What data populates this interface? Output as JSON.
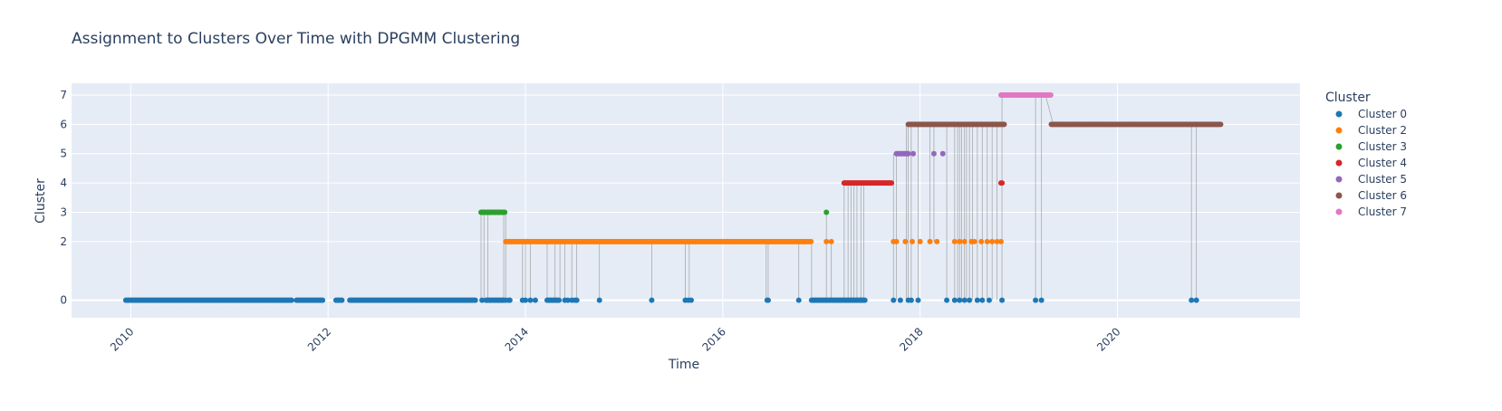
{
  "chart_data": {
    "type": "scatter",
    "title": "Assignment to Clusters Over Time with DPGMM Clustering",
    "xlabel": "Time",
    "ylabel": "Cluster",
    "xlim": [
      2009.4,
      2021.85
    ],
    "ylim": [
      -0.6,
      7.4
    ],
    "x_ticks": [
      2010,
      2012,
      2014,
      2016,
      2018,
      2020
    ],
    "x_tick_labels": [
      "2010",
      "2012",
      "2014",
      "2016",
      "2018",
      "2020"
    ],
    "y_ticks": [
      0,
      2,
      3,
      4,
      5,
      6,
      7
    ],
    "y_tick_labels": [
      "0",
      "2",
      "3",
      "4",
      "5",
      "6",
      "7"
    ],
    "grid": true,
    "legend_title": "Cluster",
    "legend_position": "right",
    "connector_color": "#7f7f7f",
    "series": [
      {
        "name": "Cluster 0",
        "color": "#1f77b4",
        "y": 0,
        "ranges": [
          [
            2009.95,
            2011.63
          ],
          [
            2011.68,
            2011.95
          ],
          [
            2012.08,
            2012.15
          ],
          [
            2012.22,
            2013.5
          ],
          [
            2013.6,
            2013.78
          ],
          [
            2013.83,
            2013.85
          ],
          [
            2014.22,
            2014.35
          ]
        ],
        "points": [
          2013.56,
          2013.8,
          2013.97,
          2014.0,
          2014.05,
          2014.1,
          2014.4,
          2014.43,
          2014.47,
          2014.5,
          2014.52,
          2014.75,
          2015.28,
          2015.62,
          2015.65,
          2015.68,
          2016.45,
          2016.46,
          2016.77,
          2017.4,
          2017.73,
          2017.8,
          2017.88,
          2017.91,
          2017.98,
          2018.27,
          2018.35,
          2018.4,
          2018.45,
          2018.5,
          2018.58,
          2018.63,
          2018.7,
          2018.83,
          2019.17,
          2019.23,
          2020.75,
          2020.8
        ],
        "extra_ranges": [
          [
            2016.9,
            2017.45
          ]
        ]
      },
      {
        "name": "Cluster 2",
        "color": "#ff7f0e",
        "y": 2,
        "ranges": [
          [
            2013.8,
            2014.95
          ],
          [
            2014.95,
            2016.9
          ]
        ],
        "points": [
          2017.05,
          2017.1,
          2017.73,
          2017.76,
          2017.85,
          2017.92,
          2018.0,
          2018.1,
          2018.17,
          2018.35,
          2018.4,
          2018.45,
          2018.52,
          2018.55,
          2018.62,
          2018.68,
          2018.73,
          2018.78,
          2018.82
        ]
      },
      {
        "name": "Cluster 3",
        "color": "#2ca02c",
        "y": 3,
        "ranges": [
          [
            2013.55,
            2013.8
          ]
        ],
        "points": [
          2017.05
        ]
      },
      {
        "name": "Cluster 4",
        "color": "#d62728",
        "y": 4,
        "ranges": [
          [
            2017.23,
            2017.72
          ]
        ],
        "points": [
          2018.82,
          2018.83
        ]
      },
      {
        "name": "Cluster 5",
        "color": "#9467bd",
        "y": 5,
        "ranges": [
          [
            2017.76,
            2017.88
          ]
        ],
        "points": [
          2017.93,
          2018.14,
          2018.23
        ]
      },
      {
        "name": "Cluster 6",
        "color": "#8c564b",
        "y": 6,
        "ranges": [
          [
            2017.88,
            2018.86
          ],
          [
            2019.33,
            2021.05
          ]
        ],
        "points": []
      },
      {
        "name": "Cluster 7",
        "color": "#e377c2",
        "y": 7,
        "ranges": [
          [
            2018.82,
            2019.33
          ]
        ],
        "points": []
      }
    ],
    "transition_lines": [
      [
        2013.55,
        0,
        3
      ],
      [
        2013.58,
        0,
        3
      ],
      [
        2013.62,
        0,
        3
      ],
      [
        2013.78,
        0,
        3
      ],
      [
        2013.8,
        0,
        3
      ],
      [
        2013.97,
        0,
        2
      ],
      [
        2014.0,
        0,
        2
      ],
      [
        2014.05,
        0,
        2
      ],
      [
        2014.22,
        0,
        2
      ],
      [
        2014.3,
        0,
        2
      ],
      [
        2014.35,
        0,
        2
      ],
      [
        2014.4,
        0,
        2
      ],
      [
        2014.47,
        0,
        2
      ],
      [
        2014.52,
        0,
        2
      ],
      [
        2014.75,
        0,
        2
      ],
      [
        2015.28,
        0,
        2
      ],
      [
        2015.62,
        0,
        2
      ],
      [
        2015.66,
        0,
        2
      ],
      [
        2016.44,
        0,
        2
      ],
      [
        2016.46,
        0,
        2
      ],
      [
        2016.77,
        0,
        2
      ],
      [
        2016.9,
        0,
        2
      ],
      [
        2017.05,
        0,
        3
      ],
      [
        2017.1,
        0,
        2
      ],
      [
        2017.23,
        0,
        4
      ],
      [
        2017.27,
        0,
        4
      ],
      [
        2017.3,
        0,
        4
      ],
      [
        2017.33,
        0,
        4
      ],
      [
        2017.36,
        0,
        4
      ],
      [
        2017.4,
        0,
        4
      ],
      [
        2017.43,
        0,
        4
      ],
      [
        2017.73,
        0,
        5
      ],
      [
        2017.76,
        0,
        5
      ],
      [
        2017.86,
        0,
        6
      ],
      [
        2017.88,
        0,
        6
      ],
      [
        2017.91,
        0,
        6
      ],
      [
        2017.98,
        0,
        6
      ],
      [
        2018.1,
        2,
        6
      ],
      [
        2018.14,
        2,
        6
      ],
      [
        2018.27,
        0,
        6
      ],
      [
        2018.35,
        0,
        6
      ],
      [
        2018.38,
        0,
        6
      ],
      [
        2018.4,
        0,
        6
      ],
      [
        2018.42,
        0,
        6
      ],
      [
        2018.45,
        0,
        6
      ],
      [
        2018.47,
        0,
        6
      ],
      [
        2018.5,
        0,
        6
      ],
      [
        2018.53,
        0,
        6
      ],
      [
        2018.58,
        0,
        6
      ],
      [
        2018.63,
        0,
        6
      ],
      [
        2018.68,
        0,
        6
      ],
      [
        2018.73,
        0,
        6
      ],
      [
        2018.78,
        0,
        6
      ],
      [
        2018.83,
        0,
        7
      ],
      [
        2019.17,
        0,
        7
      ],
      [
        2019.23,
        0,
        7
      ],
      [
        2020.75,
        0,
        6
      ],
      [
        2020.8,
        0,
        6
      ]
    ]
  }
}
